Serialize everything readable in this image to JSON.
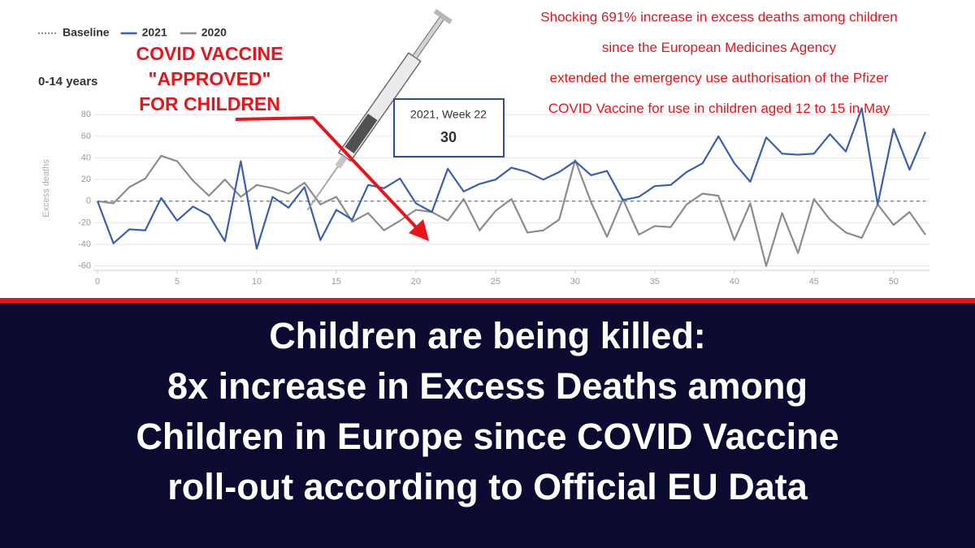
{
  "chart_data": {
    "type": "line",
    "subtitle": "0-14 years",
    "y_label": "Excess deaths",
    "x": [
      0,
      1,
      2,
      3,
      4,
      5,
      6,
      7,
      8,
      9,
      10,
      11,
      12,
      13,
      14,
      15,
      16,
      17,
      18,
      19,
      20,
      21,
      22,
      23,
      24,
      25,
      26,
      27,
      28,
      29,
      30,
      31,
      32,
      33,
      34,
      35,
      36,
      37,
      38,
      39,
      40,
      41,
      42,
      43,
      44,
      45,
      46,
      47,
      48,
      49,
      50,
      51,
      52
    ],
    "xlim": [
      0,
      52
    ],
    "xticks": [
      0,
      5,
      10,
      15,
      20,
      25,
      30,
      35,
      40,
      45,
      50
    ],
    "ylim": [
      -64,
      90
    ],
    "yticks": [
      -60,
      -40,
      -20,
      0,
      20,
      40,
      60,
      80
    ],
    "grid": true,
    "baseline": {
      "name": "Baseline",
      "value": 0,
      "color": "#666666"
    },
    "series": [
      {
        "name": "2021",
        "color": "#3a5fb0",
        "values": [
          0,
          -39,
          -26,
          -27,
          3,
          -18,
          -5,
          -13,
          -37,
          37,
          -44,
          4,
          -6,
          13,
          -36,
          -8,
          -17,
          15,
          12,
          21,
          -2,
          -10,
          30,
          9,
          16,
          20,
          31,
          27,
          20,
          27,
          37,
          24,
          28,
          1,
          4,
          14,
          15,
          27,
          35,
          60,
          35,
          18,
          59,
          44,
          43,
          44,
          62,
          46,
          86,
          -3,
          67,
          29,
          64
        ]
      },
      {
        "name": "2020",
        "color": "#8c8c8c",
        "values": [
          0,
          -2,
          13,
          21,
          42,
          37,
          19,
          5,
          20,
          4,
          15,
          12,
          7,
          17,
          -3,
          4,
          -19,
          -11,
          -27,
          -18,
          -8,
          -10,
          -18,
          2,
          -27,
          -9,
          2,
          -29,
          -27,
          -17,
          38,
          -1,
          -33,
          2,
          -31,
          -23,
          -24,
          -3,
          7,
          5,
          -36,
          -2,
          -60,
          -11,
          -48,
          2,
          -17,
          -29,
          -34,
          -3,
          -22,
          -10,
          -31
        ]
      }
    ],
    "tooltip": {
      "title": "2021, Week 22",
      "value": 30
    },
    "annotations": {
      "vaccine": [
        "COVID VACCINE",
        "\"APPROVED\"",
        "FOR CHILDREN"
      ],
      "claim": [
        "Shocking 691% increase in excess deaths among children",
        "since the European Medicines Agency",
        "extended the emergency use authorisation of the Pfizer",
        "COVID Vaccine for use in children aged 12 to 15 in May"
      ]
    },
    "headline": [
      "Children are being killed:",
      "8x increase in Excess Deaths among",
      "Children in Europe since COVID Vaccine",
      "roll-out according to Official EU Data"
    ]
  }
}
